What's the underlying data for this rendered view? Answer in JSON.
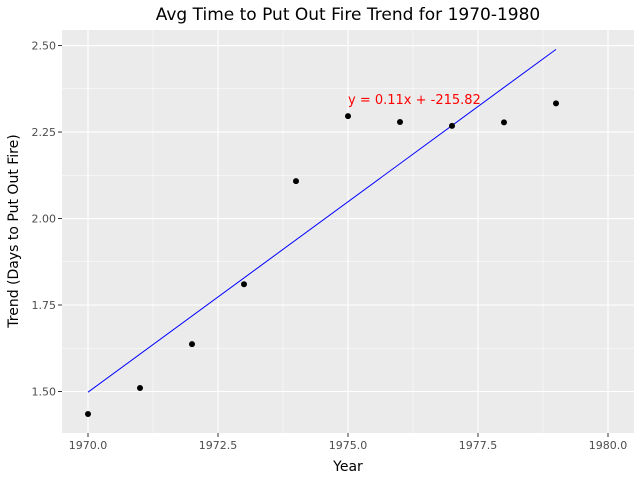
{
  "chart_data": {
    "type": "scatter",
    "title": "Avg Time to Put Out Fire Trend for 1970-1980",
    "xlabel": "Year",
    "ylabel": "Trend (Days to Put Out Fire)",
    "xlim": [
      1969.5,
      1980.5
    ],
    "ylim": [
      1.38,
      2.545
    ],
    "x_ticks": [
      1970.0,
      1972.5,
      1975.0,
      1977.5,
      1980.0
    ],
    "x_tick_labels": [
      "1970.0",
      "1972.5",
      "1975.0",
      "1977.5",
      "1980.0"
    ],
    "y_ticks": [
      1.5,
      1.75,
      2.0,
      2.25,
      2.5
    ],
    "y_tick_labels": [
      "1.50",
      "1.75",
      "2.00",
      "2.25",
      "2.50"
    ],
    "grid": true,
    "points": {
      "x": [
        1970,
        1971,
        1972,
        1973,
        1974,
        1975,
        1976,
        1977,
        1978,
        1979
      ],
      "y": [
        1.435,
        1.51,
        1.637,
        1.81,
        2.108,
        2.296,
        2.279,
        2.268,
        2.278,
        2.333
      ],
      "color": "#000000"
    },
    "trend_line": {
      "x": [
        1970,
        1979
      ],
      "y": [
        1.498,
        2.489
      ],
      "color": "#0000ff"
    },
    "annotation": {
      "text": "y = 0.11x + -215.82",
      "x": 1975.0,
      "y": 2.345,
      "color": "#ff0000"
    },
    "panel_color": "#ebebeb",
    "grid_color": "#ffffff"
  }
}
